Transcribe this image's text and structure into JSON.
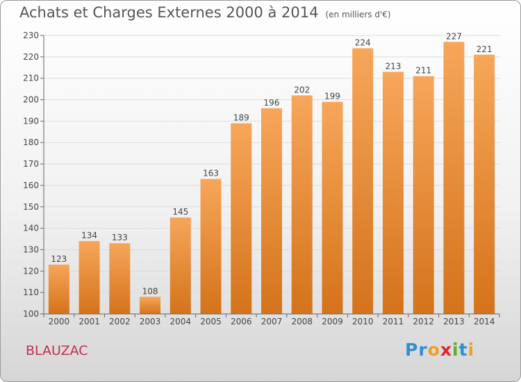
{
  "title": {
    "main": "Achats et Charges Externes 2000 à 2014",
    "unit": "(en milliers d'€)"
  },
  "commune": "BLAUZAC",
  "logo": {
    "letters": [
      "P",
      "r",
      "o",
      "x",
      "i",
      "t",
      "i"
    ],
    "colors": [
      "#2f8fd0",
      "#2f8fd0",
      "#f0a020",
      "#d8282f",
      "#5ab030",
      "#2f8fd0",
      "#f0a020"
    ]
  },
  "chart_data": {
    "type": "bar",
    "title": "Achats et Charges Externes 2000 à 2014",
    "subtitle": "(en milliers d'€)",
    "categories": [
      "2000",
      "2001",
      "2002",
      "2003",
      "2004",
      "2005",
      "2006",
      "2007",
      "2008",
      "2009",
      "2010",
      "2011",
      "2012",
      "2013",
      "2014"
    ],
    "values": [
      123,
      134,
      133,
      108,
      145,
      163,
      189,
      196,
      202,
      199,
      224,
      213,
      211,
      227,
      221
    ],
    "ylim": [
      100,
      230
    ],
    "yticks": [
      100,
      110,
      120,
      130,
      140,
      150,
      160,
      170,
      180,
      190,
      200,
      210,
      220,
      230
    ],
    "grid": true,
    "bar_color_top": "#f7a65a",
    "bar_color_bottom": "#d4731b"
  }
}
